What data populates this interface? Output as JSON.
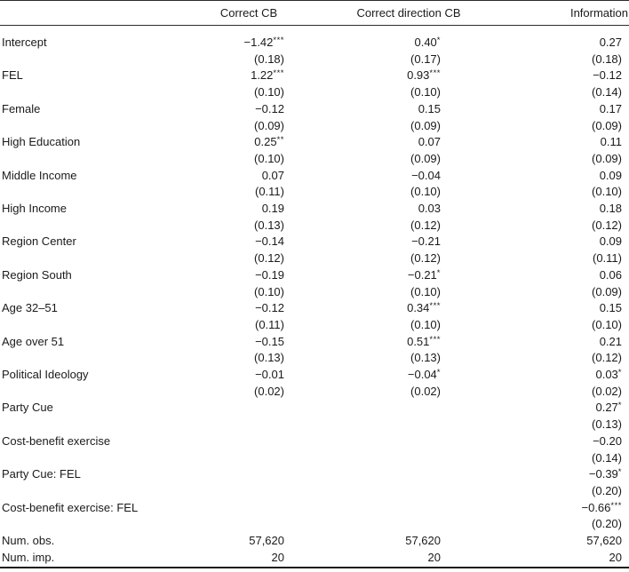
{
  "table": {
    "columns": [
      "Correct CB",
      "Correct direction CB",
      "Information"
    ],
    "rows": [
      {
        "label": "Intercept",
        "cells": [
          {
            "est": "−1.42",
            "stars": "***",
            "se": "(0.18)"
          },
          {
            "est": "0.40",
            "stars": "*",
            "se": "(0.17)"
          },
          {
            "est": "0.27",
            "stars": "",
            "se": "(0.18)"
          }
        ]
      },
      {
        "label": "FEL",
        "cells": [
          {
            "est": "1.22",
            "stars": "***",
            "se": "(0.10)"
          },
          {
            "est": "0.93",
            "stars": "***",
            "se": "(0.10)"
          },
          {
            "est": "−0.12",
            "stars": "",
            "se": "(0.14)"
          }
        ]
      },
      {
        "label": "Female",
        "cells": [
          {
            "est": "−0.12",
            "stars": "",
            "se": "(0.09)"
          },
          {
            "est": "0.15",
            "stars": "",
            "se": "(0.09)"
          },
          {
            "est": "0.17",
            "stars": "",
            "se": "(0.09)"
          }
        ]
      },
      {
        "label": "High Education",
        "cells": [
          {
            "est": "0.25",
            "stars": "**",
            "se": "(0.10)"
          },
          {
            "est": "0.07",
            "stars": "",
            "se": "(0.09)"
          },
          {
            "est": "0.11",
            "stars": "",
            "se": "(0.09)"
          }
        ]
      },
      {
        "label": "Middle Income",
        "cells": [
          {
            "est": "0.07",
            "stars": "",
            "se": "(0.11)"
          },
          {
            "est": "−0.04",
            "stars": "",
            "se": "(0.10)"
          },
          {
            "est": "0.09",
            "stars": "",
            "se": "(0.10)"
          }
        ]
      },
      {
        "label": "High Income",
        "cells": [
          {
            "est": "0.19",
            "stars": "",
            "se": "(0.13)"
          },
          {
            "est": "0.03",
            "stars": "",
            "se": "(0.12)"
          },
          {
            "est": "0.18",
            "stars": "",
            "se": "(0.12)"
          }
        ]
      },
      {
        "label": "Region Center",
        "cells": [
          {
            "est": "−0.14",
            "stars": "",
            "se": "(0.12)"
          },
          {
            "est": "−0.21",
            "stars": "",
            "se": "(0.12)"
          },
          {
            "est": "0.09",
            "stars": "",
            "se": "(0.11)"
          }
        ]
      },
      {
        "label": "Region South",
        "cells": [
          {
            "est": "−0.19",
            "stars": "",
            "se": "(0.10)"
          },
          {
            "est": "−0.21",
            "stars": "*",
            "se": "(0.10)"
          },
          {
            "est": "0.06",
            "stars": "",
            "se": "(0.09)"
          }
        ]
      },
      {
        "label": "Age 32–51",
        "cells": [
          {
            "est": "−0.12",
            "stars": "",
            "se": "(0.11)"
          },
          {
            "est": "0.34",
            "stars": "***",
            "se": "(0.10)"
          },
          {
            "est": "0.15",
            "stars": "",
            "se": "(0.10)"
          }
        ]
      },
      {
        "label": "Age over 51",
        "cells": [
          {
            "est": "−0.15",
            "stars": "",
            "se": "(0.13)"
          },
          {
            "est": "0.51",
            "stars": "***",
            "se": "(0.13)"
          },
          {
            "est": "0.21",
            "stars": "",
            "se": "(0.12)"
          }
        ]
      },
      {
        "label": "Political Ideology",
        "cells": [
          {
            "est": "−0.01",
            "stars": "",
            "se": "(0.02)"
          },
          {
            "est": "−0.04",
            "stars": "*",
            "se": "(0.02)"
          },
          {
            "est": "0.03",
            "stars": "*",
            "se": "(0.02)"
          }
        ]
      },
      {
        "label": "Party Cue",
        "cells": [
          null,
          null,
          {
            "est": "0.27",
            "stars": "*",
            "se": "(0.13)"
          }
        ]
      },
      {
        "label": "Cost-benefit exercise",
        "cells": [
          null,
          null,
          {
            "est": "−0.20",
            "stars": "",
            "se": "(0.14)"
          }
        ]
      },
      {
        "label": "Party Cue: FEL",
        "cells": [
          null,
          null,
          {
            "est": "−0.39",
            "stars": "*",
            "se": "(0.20)"
          }
        ]
      },
      {
        "label": "Cost-benefit exercise: FEL",
        "cells": [
          null,
          null,
          {
            "est": "−0.66",
            "stars": "***",
            "se": "(0.20)"
          }
        ]
      }
    ],
    "stats": [
      {
        "label": "Num. obs.",
        "values": [
          "57,620",
          "57,620",
          "57,620"
        ]
      },
      {
        "label": "Num. imp.",
        "values": [
          "20",
          "20",
          "20"
        ]
      }
    ]
  }
}
